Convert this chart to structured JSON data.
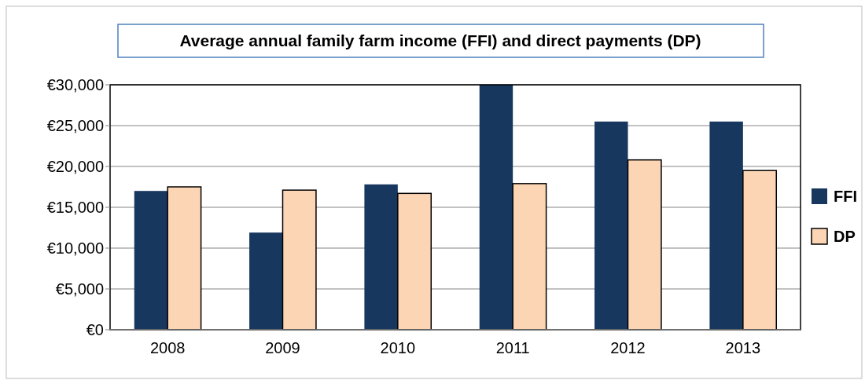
{
  "chart_data": {
    "type": "bar",
    "title": "Average annual family farm income (FFI) and direct payments (DP)",
    "categories": [
      "2008",
      "2009",
      "2010",
      "2011",
      "2012",
      "2013"
    ],
    "series": [
      {
        "name": "FFI",
        "color": "#17375e",
        "values": [
          17000,
          11900,
          17800,
          30000,
          25500,
          25500
        ]
      },
      {
        "name": "DP",
        "color": "#fcd5b5",
        "values": [
          17500,
          17100,
          16700,
          17900,
          20800,
          19500
        ]
      }
    ],
    "ylim": [
      0,
      30000
    ],
    "yticks": [
      {
        "value": 0,
        "label": "€0"
      },
      {
        "value": 5000,
        "label": "€5,000"
      },
      {
        "value": 10000,
        "label": "€10,000"
      },
      {
        "value": 15000,
        "label": "€15,000"
      },
      {
        "value": 20000,
        "label": "€20,000"
      },
      {
        "value": 25000,
        "label": "€25,000"
      },
      {
        "value": 30000,
        "label": "€30,000"
      }
    ],
    "grid": "y",
    "legend": "right"
  }
}
